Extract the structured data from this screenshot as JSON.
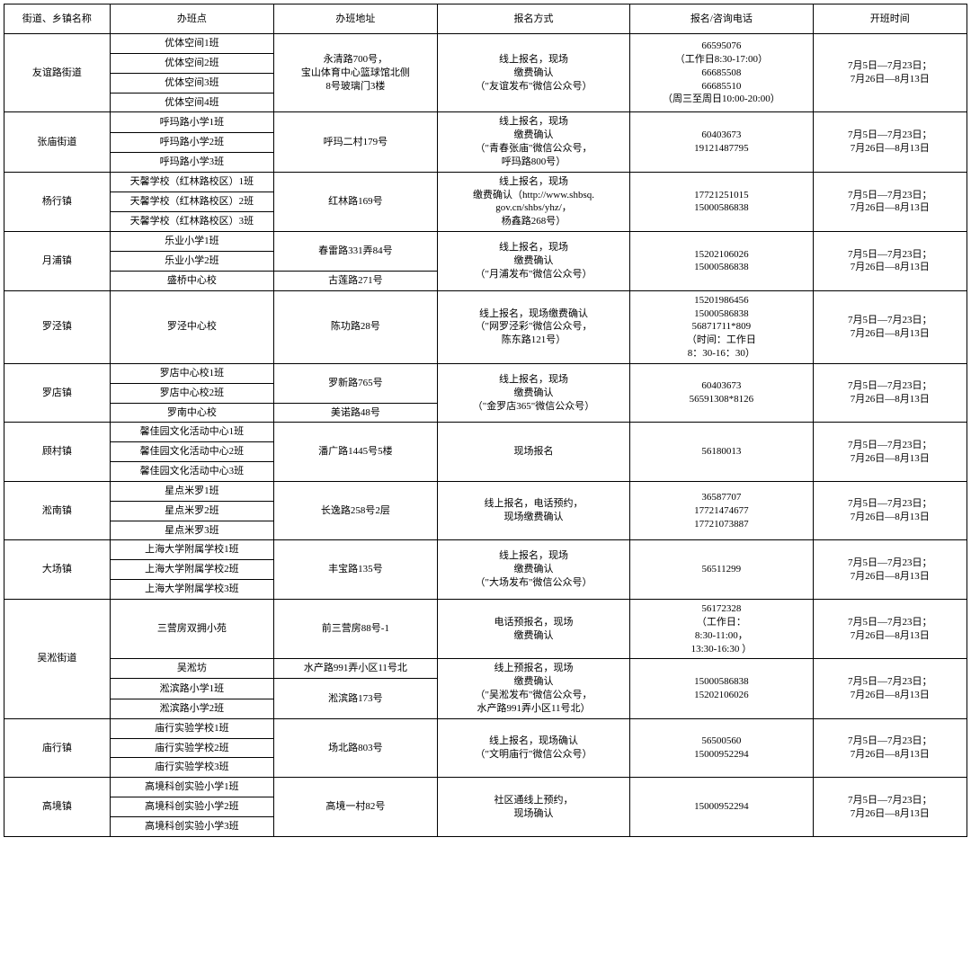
{
  "headers": [
    "街道、乡镇名称",
    "办班点",
    "办班地址",
    "报名方式",
    "报名/咨询电话",
    "开班时间"
  ],
  "schedule_common": "7月5日—7月23日；\n7月26日—8月13日",
  "rows": [
    {
      "district": "友谊路街道",
      "classes": [
        "优体空间1班",
        "优体空间2班",
        "优体空间3班",
        "优体空间4班"
      ],
      "addr": "永清路700号，\n宝山体育中心篮球馆北侧\n8号玻璃门3楼",
      "enroll": "线上报名，现场\n缴费确认\n（\"友谊发布\"微信公众号）",
      "phone": "66595076\n（工作日8:30-17:00）\n66685508\n66685510\n（周三至周日10:00-20:00）"
    },
    {
      "district": "张庙街道",
      "classes": [
        "呼玛路小学1班",
        "呼玛路小学2班",
        "呼玛路小学3班"
      ],
      "addr": "呼玛二村179号",
      "enroll": "线上报名，现场\n缴费确认\n（\"青春张庙\"微信公众号，\n呼玛路800号）",
      "phone": "60403673\n19121487795"
    },
    {
      "district": "杨行镇",
      "classes": [
        "天馨学校（红林路校区）1班",
        "天馨学校（红林路校区）2班",
        "天馨学校（红林路校区）3班"
      ],
      "addr": "红林路169号",
      "enroll": "线上报名，现场\n缴费确认（http://www.shbsq.\ngov.cn/shbs/yhz/，\n杨鑫路268号）",
      "phone": "17721251015\n15000586838"
    },
    {
      "district": "月浦镇",
      "classes": [
        "乐业小学1班",
        "乐业小学2班",
        "盛桥中心校"
      ],
      "addrs": [
        "春雷路331弄84号",
        "古莲路271号"
      ],
      "addr_spans": [
        2,
        1
      ],
      "enroll": "线上报名，现场\n缴费确认\n（\"月浦发布\"微信公众号）",
      "phone": "15202106026\n15000586838"
    },
    {
      "district": "罗泾镇",
      "classes": [
        "罗泾中心校"
      ],
      "addr": "陈功路28号",
      "enroll": "线上报名，现场缴费确认\n（\"网罗泾彩\"微信公众号，\n陈东路121号）",
      "phone": "15201986456\n15000586838\n56871711*809\n（时间：工作日\n8：30-16：30）"
    },
    {
      "district": "罗店镇",
      "classes": [
        "罗店中心校1班",
        "罗店中心校2班",
        "罗南中心校"
      ],
      "addrs": [
        "罗新路765号",
        "美诺路48号"
      ],
      "addr_spans": [
        2,
        1
      ],
      "enroll": "线上报名，现场\n缴费确认\n（\"金罗店365\"微信公众号）",
      "phone": "60403673\n56591308*8126"
    },
    {
      "district": "顾村镇",
      "classes": [
        "馨佳园文化活动中心1班",
        "馨佳园文化活动中心2班",
        "馨佳园文化活动中心3班"
      ],
      "addr": "潘广路1445号5楼",
      "enroll": "现场报名",
      "phone": "56180013"
    },
    {
      "district": "淞南镇",
      "classes": [
        "星点米罗1班",
        "星点米罗2班",
        "星点米罗3班"
      ],
      "addr": "长逸路258号2层",
      "enroll": "线上报名，电话预约，\n现场缴费确认",
      "phone": "36587707\n17721474677\n17721073887"
    },
    {
      "district": "大场镇",
      "classes": [
        "上海大学附属学校1班",
        "上海大学附属学校2班",
        "上海大学附属学校3班"
      ],
      "addr": "丰宝路135号",
      "enroll": "线上报名，现场\n缴费确认\n（\"大场发布\"微信公众号）",
      "phone": "56511299"
    },
    {
      "district": "吴淞街道",
      "subgroups": [
        {
          "classes": [
            "三营房双拥小苑"
          ],
          "addr": "前三营房88号-1",
          "enroll": "电话预报名，现场\n缴费确认",
          "phone": "56172328\n（工作日：\n8:30-11:00，\n13:30-16:30 ）",
          "sched": true
        },
        {
          "classes": [
            "吴淞坊",
            "淞滨路小学1班",
            "淞滨路小学2班"
          ],
          "addrs": [
            "水产路991弄小区11号北",
            "淞滨路173号"
          ],
          "addr_spans": [
            1,
            2
          ],
          "enroll": "线上预报名，现场\n缴费确认\n（\"吴淞发布\"微信公众号，\n水产路991弄小区11号北）",
          "phone": "15000586838\n15202106026",
          "sched": true
        }
      ]
    },
    {
      "district": "庙行镇",
      "classes": [
        "庙行实验学校1班",
        "庙行实验学校2班",
        "庙行实验学校3班"
      ],
      "addr": "场北路803号",
      "enroll": "线上报名，现场确认\n（\"文明庙行\"微信公众号）",
      "phone": "56500560\n15000952294"
    },
    {
      "district": "高境镇",
      "classes": [
        "高境科创实验小学1班",
        "高境科创实验小学2班",
        "高境科创实验小学3班"
      ],
      "addr": "高境一村82号",
      "enroll": "社区通线上预约，\n现场确认",
      "phone": "15000952294"
    }
  ]
}
